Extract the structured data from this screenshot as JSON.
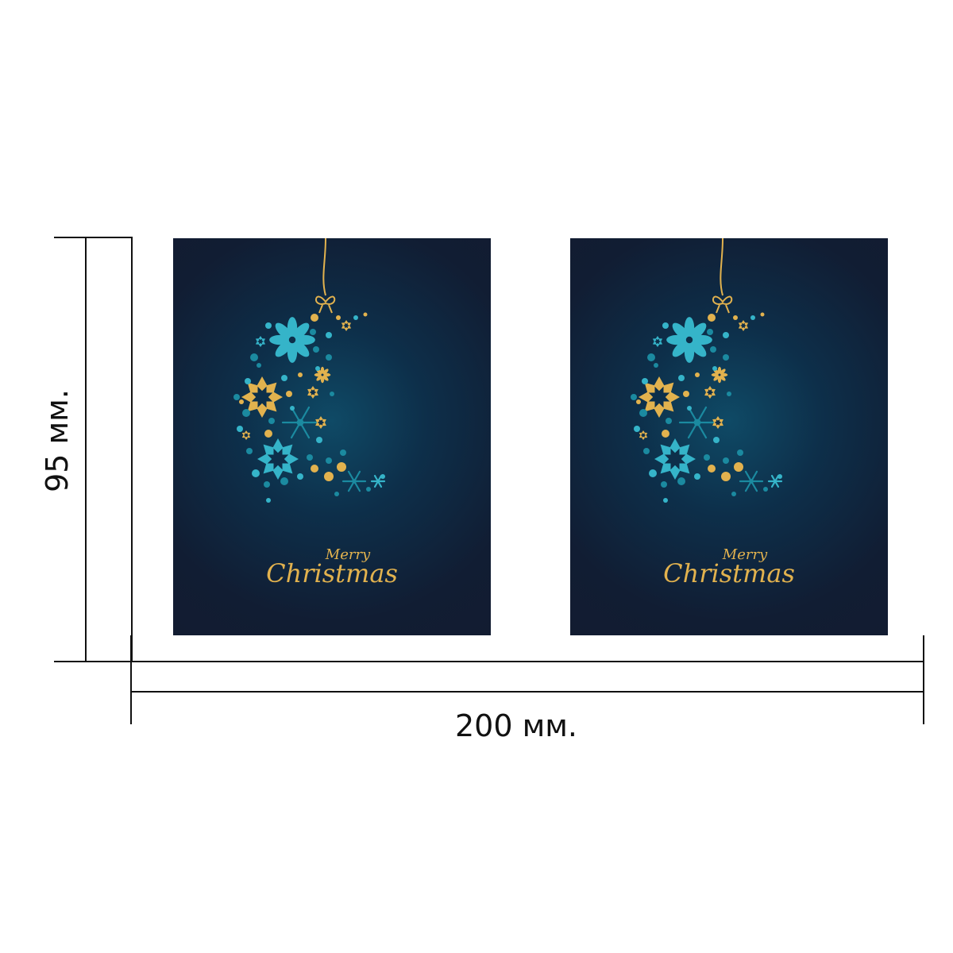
{
  "dimensions": {
    "height_label": "95 мм.",
    "width_label": "200 мм."
  },
  "cards": [
    {
      "greeting_small": "Merry",
      "greeting_big": "Christmas"
    },
    {
      "greeting_small": "Merry",
      "greeting_big": "Christmas"
    }
  ],
  "colors": {
    "card_background": "#121c31",
    "gold": "#e2b24e",
    "light_blue": "#35b4c9",
    "teal": "#1b8aa0",
    "dimension_line": "#111111"
  },
  "icons": [
    "bauble-ornament",
    "snowflake",
    "flower",
    "star",
    "bow"
  ]
}
